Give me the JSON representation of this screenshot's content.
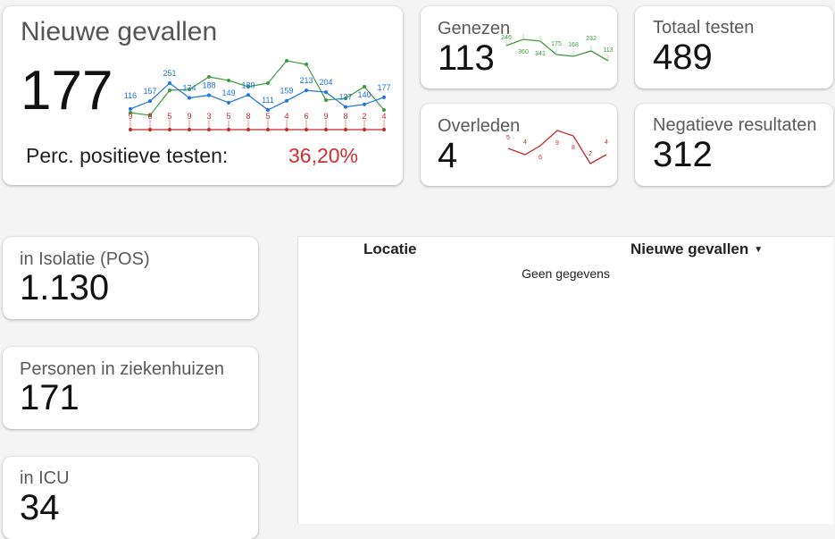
{
  "main_card": {
    "title": "Nieuwe gevallen",
    "value": "177",
    "perc_label": "Perc. positieve testen:",
    "perc_value": "36,20%"
  },
  "cards": {
    "genezen": {
      "label": "Genezen",
      "value": "113"
    },
    "totaal_testen": {
      "label": "Totaal testen",
      "value": "489"
    },
    "overleden": {
      "label": "Overleden",
      "value": "4"
    },
    "negatieve": {
      "label": "Negatieve resultaten",
      "value": "312"
    },
    "isolatie": {
      "label": "in Isolatie (POS)",
      "value": "1.130"
    },
    "ziekenhuizen": {
      "label": "Personen in ziekenhuizen",
      "value": "171"
    },
    "icu": {
      "label": "in ICU",
      "value": "34"
    }
  },
  "table": {
    "col_locatie": "Locatie",
    "col_nieuwe": "Nieuwe gevallen",
    "empty_text": "Geen gegevens"
  },
  "colors": {
    "blue": "#1a73e8",
    "green": "#3c9a3c",
    "red": "#c62828"
  },
  "chart_data": [
    {
      "type": "line",
      "series": [
        {
          "color": "#1a73e8",
          "values": [
            116,
            157,
            251,
            174,
            188,
            149,
            189,
            111,
            159,
            213,
            204,
            127,
            140,
            177
          ]
        },
        {
          "color": "#3c9a3c",
          "values": [
            null,
            null,
            null,
            null,
            null,
            null,
            null,
            null,
            null,
            null,
            null,
            null,
            null,
            null
          ]
        },
        {
          "color": "#c62828",
          "values": [
            9,
            8,
            5,
            9,
            3,
            5,
            8,
            5,
            4,
            6,
            9,
            8,
            2,
            4
          ]
        }
      ]
    },
    {
      "type": "line",
      "series": [
        {
          "color": "#3c9a3c",
          "values": [
            246,
            360,
            341,
            175,
            168,
            232,
            113
          ]
        }
      ]
    },
    {
      "type": "line",
      "series": [
        {
          "color": "#c62828",
          "values": [
            5,
            4,
            6,
            9,
            8,
            2,
            4
          ]
        }
      ]
    }
  ]
}
